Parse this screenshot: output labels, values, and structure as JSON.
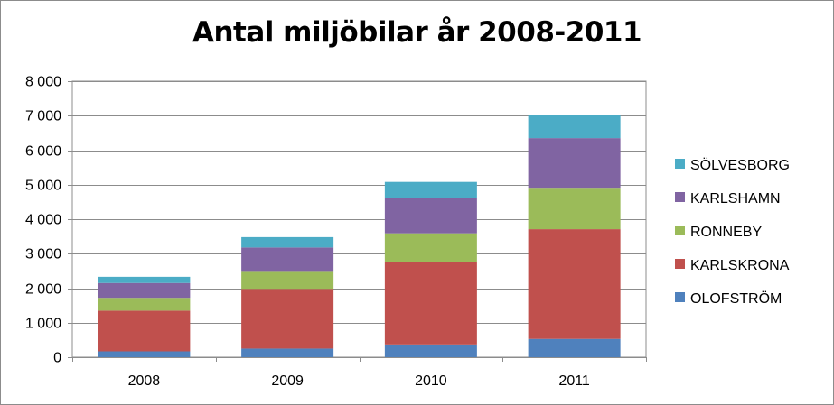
{
  "chart_data": {
    "type": "bar",
    "stacked": true,
    "title": "Antal miljöbilar år 2008-2011",
    "categories": [
      "2008",
      "2009",
      "2010",
      "2011"
    ],
    "ylim": [
      0,
      8000
    ],
    "yticks": [
      0,
      1000,
      2000,
      3000,
      4000,
      5000,
      6000,
      7000,
      8000
    ],
    "ytick_labels": [
      "0",
      "1 000",
      "2 000",
      "3 000",
      "4 000",
      "5 000",
      "6 000",
      "7 000",
      "8 000"
    ],
    "grid": true,
    "legend_position": "right",
    "series": [
      {
        "name": "OLOFSTRÖM",
        "color": "#4f81bd",
        "values": [
          170,
          250,
          370,
          530
        ]
      },
      {
        "name": "KARLSKRONA",
        "color": "#c0504d",
        "values": [
          1180,
          1730,
          2380,
          3180
        ]
      },
      {
        "name": "RONNEBY",
        "color": "#9bbb59",
        "values": [
          370,
          520,
          840,
          1200
        ]
      },
      {
        "name": "KARLSHAMN",
        "color": "#8064a2",
        "values": [
          430,
          680,
          1020,
          1440
        ]
      },
      {
        "name": "SÖLVESBORG",
        "color": "#4bacc6",
        "values": [
          180,
          300,
          470,
          680
        ]
      }
    ]
  }
}
